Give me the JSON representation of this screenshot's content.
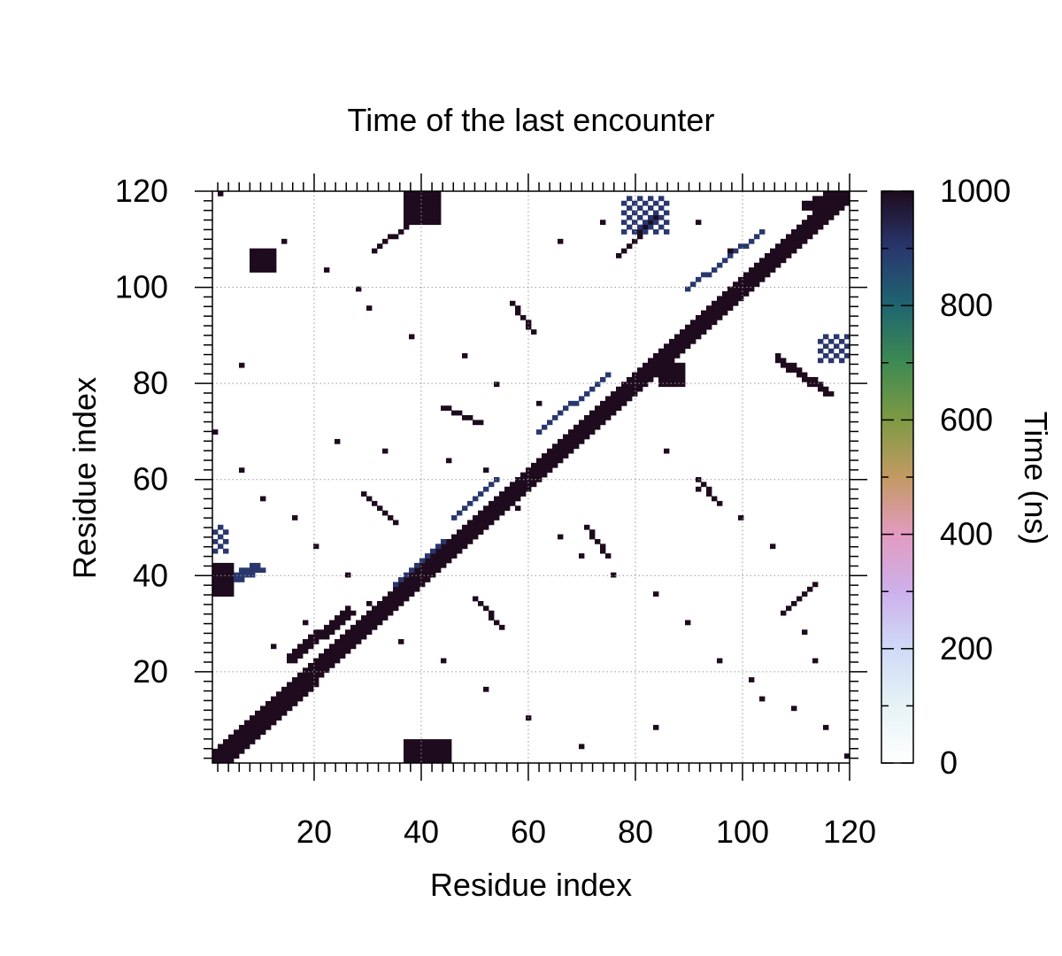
{
  "chart_data": {
    "type": "heatmap",
    "title": "Time of the last encounter",
    "xlabel": "Residue index",
    "ylabel": "Residue index",
    "colorbar_label": "Time (ns)",
    "xlim": [
      1,
      120
    ],
    "ylim": [
      1,
      120
    ],
    "x_ticks": [
      20,
      40,
      60,
      80,
      100,
      120
    ],
    "y_ticks": [
      20,
      40,
      60,
      80,
      100,
      120
    ],
    "colorbar_range": [
      0,
      1000
    ],
    "colorbar_ticks": [
      0,
      200,
      400,
      600,
      800,
      1000
    ],
    "grid": true,
    "colormap": [
      {
        "value": 0,
        "color": "#ffffff"
      },
      {
        "value": 100,
        "color": "#e6f3f5"
      },
      {
        "value": 200,
        "color": "#cfdaf7"
      },
      {
        "value": 300,
        "color": "#cdb0ea"
      },
      {
        "value": 400,
        "color": "#e29bc0"
      },
      {
        "value": 500,
        "color": "#c39a62"
      },
      {
        "value": 600,
        "color": "#7e9a44"
      },
      {
        "value": 700,
        "color": "#3e8a52"
      },
      {
        "value": 800,
        "color": "#1f6570"
      },
      {
        "value": 900,
        "color": "#29376e"
      },
      {
        "value": 1000,
        "color": "#1e0b1e"
      }
    ],
    "diagonal_band": {
      "value": 1000,
      "half_width": 2
    },
    "contact_segments": [
      {
        "start": [
          1,
          2
        ],
        "end": [
          12,
          13
        ],
        "width": 2,
        "value": 1000
      },
      {
        "start": [
          4,
          1
        ],
        "end": [
          20,
          17
        ],
        "width": 1,
        "value": 1000
      },
      {
        "start": [
          15,
          22
        ],
        "end": [
          26,
          32
        ],
        "width": 2,
        "value": 1000
      },
      {
        "start": [
          35,
          38
        ],
        "end": [
          44,
          47
        ],
        "width": 1,
        "value": 950
      },
      {
        "start": [
          46,
          52
        ],
        "end": [
          54,
          60
        ],
        "width": 1,
        "value": 950
      },
      {
        "start": [
          62,
          70
        ],
        "end": [
          75,
          82
        ],
        "width": 1,
        "value": 950
      },
      {
        "start": [
          90,
          100
        ],
        "end": [
          104,
          112
        ],
        "width": 1,
        "value": 950
      },
      {
        "start": [
          112,
          117
        ],
        "end": [
          119,
          120
        ],
        "width": 2,
        "value": 1000
      },
      {
        "start": [
          29,
          57
        ],
        "end": [
          35,
          51
        ],
        "width": 1,
        "value": 1000
      },
      {
        "start": [
          50,
          35
        ],
        "end": [
          55,
          29
        ],
        "width": 1,
        "value": 1000
      },
      {
        "start": [
          57,
          97
        ],
        "end": [
          61,
          91
        ],
        "width": 1,
        "value": 1000
      },
      {
        "start": [
          92,
          60
        ],
        "end": [
          96,
          55
        ],
        "width": 1,
        "value": 1000
      },
      {
        "start": [
          31,
          108
        ],
        "end": [
          37,
          113
        ],
        "width": 1,
        "value": 1000
      },
      {
        "start": [
          108,
          32
        ],
        "end": [
          114,
          38
        ],
        "width": 1,
        "value": 1000
      },
      {
        "start": [
          44,
          75
        ],
        "end": [
          51,
          72
        ],
        "width": 1,
        "value": 1000
      },
      {
        "start": [
          71,
          50
        ],
        "end": [
          75,
          44
        ],
        "width": 1,
        "value": 1000
      },
      {
        "start": [
          107,
          85
        ],
        "end": [
          116,
          78
        ],
        "width": 2,
        "value": 1000
      },
      {
        "start": [
          77,
          107
        ],
        "end": [
          84,
          115
        ],
        "width": 1,
        "value": 1000
      },
      {
        "start": [
          3,
          38
        ],
        "end": [
          9,
          41
        ],
        "width": 2,
        "value": 950
      },
      {
        "start": [
          37,
          3
        ],
        "end": [
          42,
          1
        ],
        "width": 2,
        "value": 1000
      }
    ],
    "contact_blocks": [
      {
        "x": [
          1,
          4
        ],
        "y": [
          36,
          42
        ],
        "value": 980
      },
      {
        "x": [
          1,
          3
        ],
        "y": [
          45,
          50
        ],
        "value": 900
      },
      {
        "x": [
          37,
          45
        ],
        "y": [
          1,
          5
        ],
        "value": 1000
      },
      {
        "x": [
          115,
          120
        ],
        "y": [
          85,
          90
        ],
        "value": 950
      },
      {
        "x": [
          78,
          86
        ],
        "y": [
          112,
          119
        ],
        "value": 950
      },
      {
        "x": [
          37,
          43
        ],
        "y": [
          114,
          120
        ],
        "value": 1000
      },
      {
        "x": [
          8,
          12
        ],
        "y": [
          104,
          108
        ],
        "value": 1000
      },
      {
        "x": [
          85,
          89
        ],
        "y": [
          80,
          84
        ],
        "value": 1000
      }
    ],
    "scattered_points": [
      [
        6,
        84
      ],
      [
        1,
        70
      ],
      [
        2,
        120
      ],
      [
        12,
        25
      ],
      [
        18,
        30
      ],
      [
        24,
        68
      ],
      [
        33,
        66
      ],
      [
        45,
        64
      ],
      [
        52,
        62
      ],
      [
        58,
        54
      ],
      [
        66,
        48
      ],
      [
        70,
        44
      ],
      [
        76,
        40
      ],
      [
        84,
        36
      ],
      [
        90,
        30
      ],
      [
        96,
        22
      ],
      [
        102,
        18
      ],
      [
        110,
        12
      ],
      [
        116,
        8
      ],
      [
        120,
        2
      ],
      [
        38,
        90
      ],
      [
        48,
        86
      ],
      [
        54,
        80
      ],
      [
        62,
        76
      ],
      [
        30,
        96
      ],
      [
        28,
        100
      ],
      [
        22,
        104
      ],
      [
        14,
        110
      ],
      [
        66,
        110
      ],
      [
        74,
        114
      ],
      [
        92,
        114
      ],
      [
        98,
        108
      ],
      [
        104,
        104
      ],
      [
        86,
        66
      ],
      [
        92,
        58
      ],
      [
        100,
        52
      ],
      [
        106,
        46
      ],
      [
        112,
        28
      ],
      [
        114,
        22
      ],
      [
        104,
        14
      ],
      [
        84,
        8
      ],
      [
        70,
        4
      ],
      [
        60,
        10
      ],
      [
        52,
        16
      ],
      [
        44,
        22
      ],
      [
        36,
        26
      ],
      [
        30,
        34
      ],
      [
        26,
        40
      ],
      [
        20,
        46
      ],
      [
        16,
        52
      ],
      [
        10,
        56
      ],
      [
        6,
        62
      ]
    ]
  }
}
